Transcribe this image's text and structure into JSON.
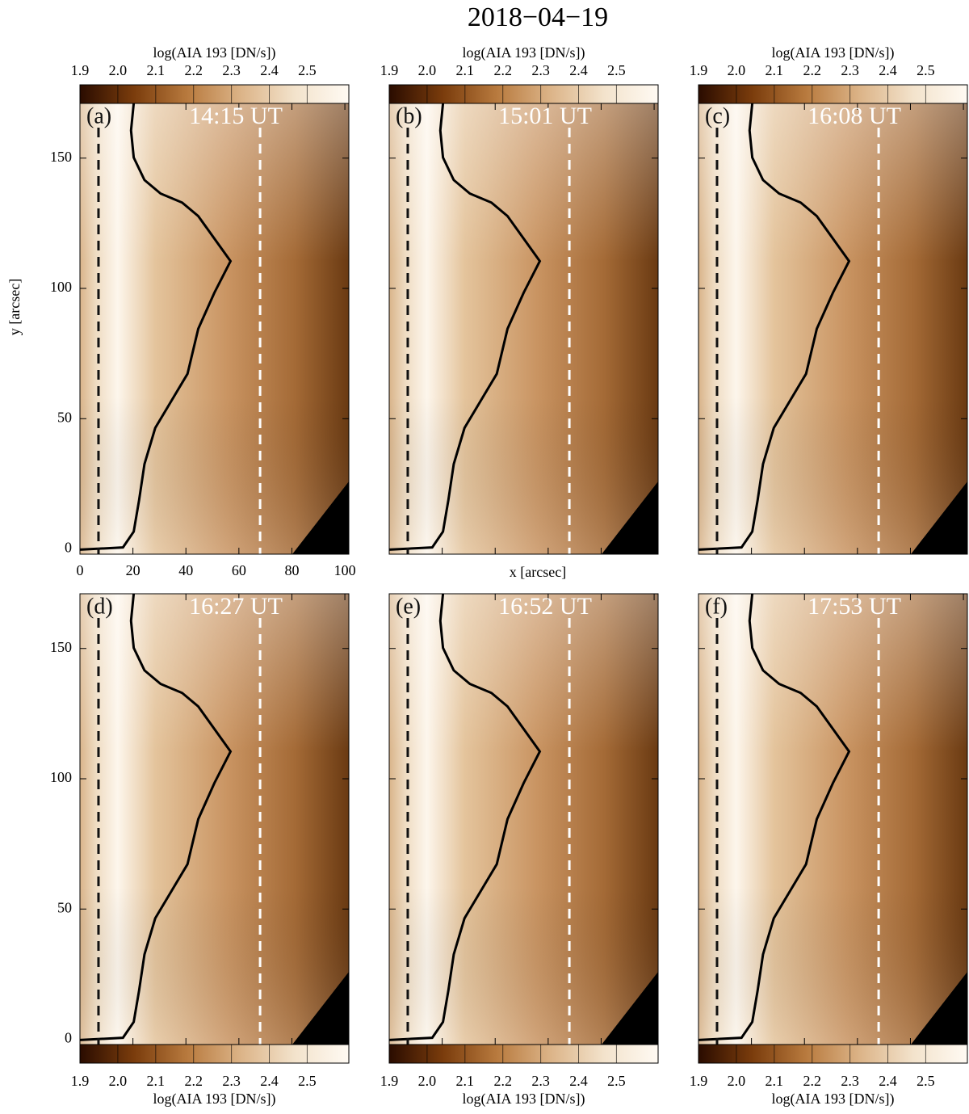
{
  "chart_data": {
    "type": "image",
    "title": "2018−04−19",
    "x_label": "x [arcsec]",
    "y_label": "y [arcsec]",
    "xlim": [
      0,
      101.5
    ],
    "ylim": [
      -2,
      171
    ],
    "xticks": [
      0,
      20,
      40,
      60,
      80,
      100
    ],
    "yticks": [
      0,
      50,
      100,
      150
    ],
    "slits": [
      {
        "x": 7,
        "color": "#111111"
      },
      {
        "x": 68,
        "color": "#ffffff"
      }
    ],
    "colorbar": {
      "label": "log(AIA 193 [DN/s])",
      "clim": [
        1.9,
        2.61
      ],
      "ticks": [
        1.9,
        {
          "value": 2.0,
          "label": "2.0"
        },
        2.1,
        2.2,
        2.3,
        2.4,
        2.5
      ],
      "colors": [
        "#2a0c00",
        "#7a3c0c",
        "#b87a3e",
        "#dcb488",
        "#f3e3cc",
        "#fffaf3"
      ]
    },
    "panels": [
      {
        "label": "(a)",
        "time": "14:15 UT"
      },
      {
        "label": "(b)",
        "time": "15:01 UT"
      },
      {
        "label": "(c)",
        "time": "16:08 UT"
      },
      {
        "label": "(d)",
        "time": "16:27 UT"
      },
      {
        "label": "(e)",
        "time": "16:52 UT"
      },
      {
        "label": "(f)",
        "time": "17:53 UT"
      }
    ]
  }
}
